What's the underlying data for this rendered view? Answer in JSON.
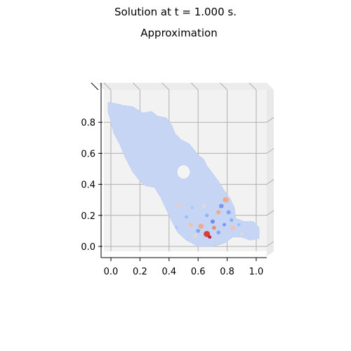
{
  "figure": {
    "suptitle": "Solution at t = 1.000 s.",
    "subtitle": "Approximation"
  },
  "chart_data": {
    "type": "surface",
    "title": "Approximation",
    "xlabel": "",
    "ylabel": "",
    "x_ticks": [
      "0.0",
      "0.2",
      "0.4",
      "0.6",
      "0.8",
      "1.0"
    ],
    "y_ticks": [
      "0.0",
      "0.2",
      "0.4",
      "0.6",
      "0.8"
    ],
    "xlim": [
      -0.06,
      1.08
    ],
    "ylim": [
      -0.06,
      0.96
    ],
    "grid": true,
    "colormap": "coolwarm",
    "colors": {
      "base": "#c6d5f4",
      "pane": "#f2f2f2",
      "grid": "#b0b0b0"
    },
    "domain_outline": [
      [
        -0.02,
        0.93
      ],
      [
        0.04,
        0.92
      ],
      [
        0.08,
        0.91
      ],
      [
        0.15,
        0.9
      ],
      [
        0.22,
        0.86
      ],
      [
        0.28,
        0.87
      ],
      [
        0.32,
        0.84
      ],
      [
        0.38,
        0.83
      ],
      [
        0.42,
        0.78
      ],
      [
        0.44,
        0.73
      ],
      [
        0.48,
        0.69
      ],
      [
        0.54,
        0.66
      ],
      [
        0.6,
        0.59
      ],
      [
        0.64,
        0.56
      ],
      [
        0.66,
        0.52
      ],
      [
        0.7,
        0.47
      ],
      [
        0.74,
        0.42
      ],
      [
        0.78,
        0.36
      ],
      [
        0.82,
        0.31
      ],
      [
        0.85,
        0.25
      ],
      [
        0.86,
        0.18
      ],
      [
        0.92,
        0.16
      ],
      [
        0.98,
        0.16
      ],
      [
        1.02,
        0.12
      ],
      [
        1.02,
        0.05
      ],
      [
        0.96,
        0.04
      ],
      [
        0.9,
        0.06
      ],
      [
        0.84,
        0.06
      ],
      [
        0.78,
        0.02
      ],
      [
        0.7,
        0.0
      ],
      [
        0.6,
        0.0
      ],
      [
        0.52,
        0.04
      ],
      [
        0.46,
        0.09
      ],
      [
        0.42,
        0.16
      ],
      [
        0.38,
        0.24
      ],
      [
        0.34,
        0.32
      ],
      [
        0.3,
        0.38
      ],
      [
        0.24,
        0.39
      ],
      [
        0.2,
        0.42
      ],
      [
        0.15,
        0.48
      ],
      [
        0.1,
        0.57
      ],
      [
        0.06,
        0.66
      ],
      [
        0.02,
        0.73
      ],
      [
        0.0,
        0.8
      ],
      [
        -0.02,
        0.87
      ]
    ],
    "hole": {
      "cx": 0.5,
      "cy": 0.48,
      "r": 0.045
    },
    "hot_spots": [
      {
        "x": 0.66,
        "y": 0.08,
        "r": 0.022,
        "color": "#d73027"
      },
      {
        "x": 0.68,
        "y": 0.06,
        "r": 0.012,
        "color": "#b2182b"
      },
      {
        "x": 0.79,
        "y": 0.3,
        "r": 0.02,
        "color": "#f4a582"
      },
      {
        "x": 0.62,
        "y": 0.13,
        "r": 0.018,
        "color": "#f4a582"
      },
      {
        "x": 0.71,
        "y": 0.12,
        "r": 0.014,
        "color": "#e7866b"
      },
      {
        "x": 0.55,
        "y": 0.14,
        "r": 0.016,
        "color": "#f6bfa6"
      },
      {
        "x": 0.84,
        "y": 0.12,
        "r": 0.016,
        "color": "#f6bfa6"
      },
      {
        "x": 0.47,
        "y": 0.26,
        "r": 0.014,
        "color": "#f2cbb7"
      },
      {
        "x": 0.74,
        "y": 0.22,
        "r": 0.015,
        "color": "#f4a582"
      },
      {
        "x": 0.58,
        "y": 0.07,
        "r": 0.014,
        "color": "#e8d6cc"
      },
      {
        "x": 0.9,
        "y": 0.08,
        "r": 0.012,
        "color": "#dddcdc"
      },
      {
        "x": 0.64,
        "y": 0.26,
        "r": 0.014,
        "color": "#dddcdc"
      }
    ],
    "cold_spots": [
      {
        "x": 0.76,
        "y": 0.26,
        "r": 0.016,
        "color": "#6f92f3"
      },
      {
        "x": 0.81,
        "y": 0.22,
        "r": 0.015,
        "color": "#7b9ff9"
      },
      {
        "x": 0.7,
        "y": 0.16,
        "r": 0.015,
        "color": "#6788ee"
      },
      {
        "x": 0.6,
        "y": 0.1,
        "r": 0.014,
        "color": "#7b9ff9"
      },
      {
        "x": 0.83,
        "y": 0.17,
        "r": 0.013,
        "color": "#89acfd"
      },
      {
        "x": 0.52,
        "y": 0.19,
        "r": 0.012,
        "color": "#9abbff"
      },
      {
        "x": 0.66,
        "y": 0.2,
        "r": 0.013,
        "color": "#8caffe"
      },
      {
        "x": 0.74,
        "y": 0.09,
        "r": 0.013,
        "color": "#7b9ff9"
      },
      {
        "x": 0.78,
        "y": 0.14,
        "r": 0.012,
        "color": "#6f92f3"
      },
      {
        "x": 0.56,
        "y": 0.25,
        "r": 0.012,
        "color": "#a9c6fd"
      },
      {
        "x": 0.45,
        "y": 0.12,
        "r": 0.012,
        "color": "#a9c6fd"
      },
      {
        "x": 0.88,
        "y": 0.14,
        "r": 0.011,
        "color": "#9abbff"
      }
    ]
  }
}
